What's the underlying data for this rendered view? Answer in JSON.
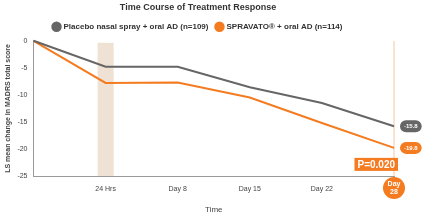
{
  "chart_data": {
    "type": "line",
    "title": "Time Course of Treatment Response",
    "categories": [
      null,
      "24 Hrs",
      "Day 8",
      "Day 15",
      "Day 22",
      "Day 28"
    ],
    "series": [
      {
        "name": "SPRAVATO® + oral AD (n=114)",
        "color": "#f47b20",
        "values": [
          0,
          -7.8,
          -7.7,
          -10.5,
          -15.2,
          -19.8
        ],
        "value_labels": [
          null,
          null,
          null,
          null,
          null,
          "-19.8"
        ],
        "marker": "none",
        "line_style": "solid"
      },
      {
        "name": "Placebo nasal spray + oral AD (n=109)",
        "color": "#666666",
        "values": [
          0,
          -4.8,
          -4.8,
          -8.6,
          -11.5,
          -15.8
        ],
        "value_labels": [
          null,
          null,
          null,
          null,
          null,
          "-15.8"
        ],
        "marker": "none",
        "line_style": "solid"
      }
    ],
    "x_label": "Time",
    "y_label": "LS mean change in MADRS total score",
    "ylim": [
      -25,
      0
    ],
    "yticks": [
      -25,
      -20,
      -15,
      -10,
      -5,
      0
    ],
    "annotations": [
      "P=0.020"
    ],
    "grid": false,
    "legend": "top"
  }
}
